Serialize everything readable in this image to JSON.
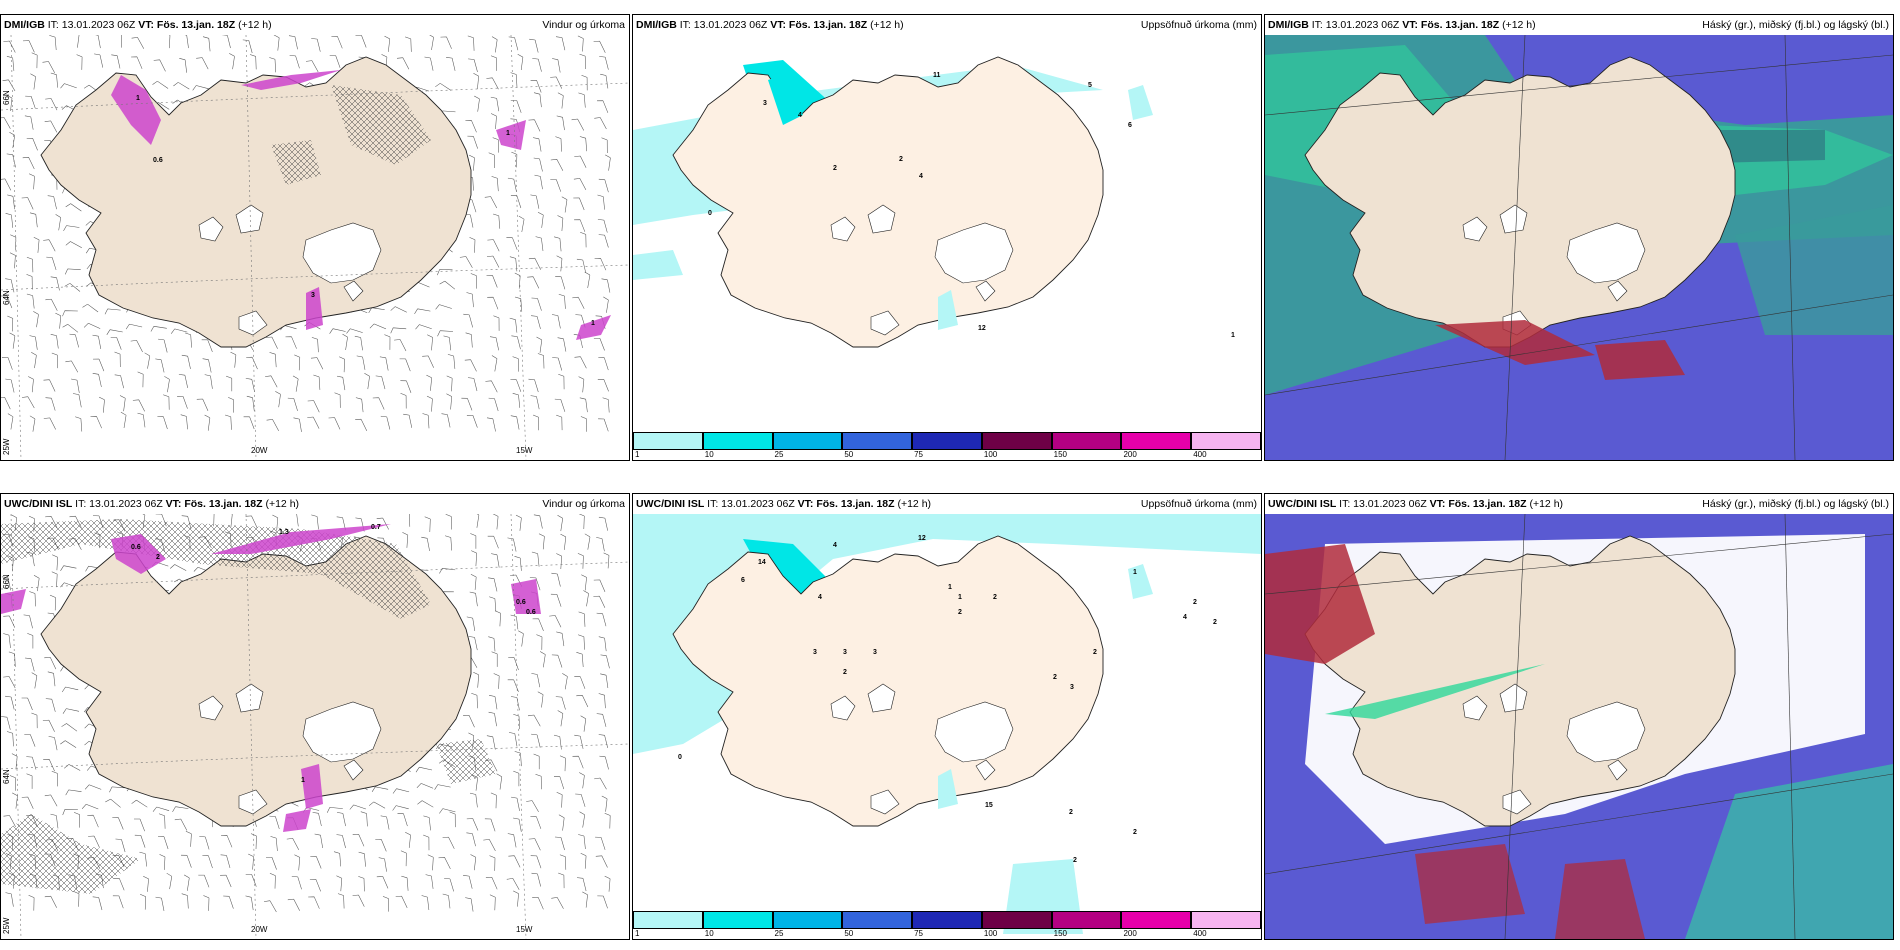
{
  "panels": [
    {
      "source": "DMI/IGB",
      "it": "IT: 13.01.2023 06Z",
      "vt": "VT: Fös. 13.jan. 18Z",
      "lead": "(+12 h)",
      "title": "Vindur og úrkoma",
      "type": "wind"
    },
    {
      "source": "DMI/IGB",
      "it": "IT: 13.01.2023 06Z",
      "vt": "VT: Fös. 13.jan. 18Z",
      "lead": "(+12 h)",
      "title": "Uppsöfnuð úrkoma (mm)",
      "type": "precip"
    },
    {
      "source": "DMI/IGB",
      "it": "IT: 13.01.2023 06Z",
      "vt": "VT: Fös. 13.jan. 18Z",
      "lead": "(+12 h)",
      "title": "Háský (gr.), miðský (fj.bl.) og lágský (bl.)",
      "type": "cloud1"
    },
    {
      "source": "UWC/DINI ISL",
      "it": "IT: 13.01.2023 06Z",
      "vt": "VT: Fös. 13.jan. 18Z",
      "lead": "(+12 h)",
      "title": "Vindur og úrkoma",
      "type": "wind"
    },
    {
      "source": "UWC/DINI ISL",
      "it": "IT: 13.01.2023 06Z",
      "vt": "VT: Fös. 13.jan. 18Z",
      "lead": "(+12 h)",
      "title": "Uppsöfnuð úrkoma (mm)",
      "type": "precip"
    },
    {
      "source": "UWC/DINI ISL",
      "it": "IT: 13.01.2023 06Z",
      "vt": "VT: Fös. 13.jan. 18Z",
      "lead": "(+12 h)",
      "title": "Háský (gr.), miðský (fj.bl.) og lágský (bl.)",
      "type": "cloud2"
    }
  ],
  "axis_labels": {
    "lat66": "66N",
    "lat64": "64N",
    "lon25": "25W",
    "lon20": "20W",
    "lon15": "15W"
  },
  "legend": {
    "labels": [
      "1",
      "10",
      "25",
      "50",
      "75",
      "100",
      "150",
      "200",
      "400"
    ],
    "colors": [
      "#b4f6f6",
      "#00e6e6",
      "#00b4e6",
      "#3264dc",
      "#1e28b4",
      "#6e0046",
      "#b40082",
      "#e600aa",
      "#f6b4f0"
    ]
  },
  "precip_values_top": [
    "11",
    "5",
    "4",
    "4",
    "2",
    "2",
    "6",
    "3",
    "1",
    "12",
    "0"
  ],
  "precip_values_bottom": [
    "12",
    "4",
    "1",
    "14",
    "6",
    "4",
    "2",
    "2",
    "3",
    "3",
    "3",
    "2",
    "2",
    "1",
    "2",
    "2",
    "4",
    "2",
    "3",
    "2",
    "1",
    "15",
    "2",
    "2",
    "0"
  ],
  "wind_values_top": [
    "0.6",
    "1",
    "3",
    "1",
    "1"
  ],
  "wind_values_bottom": [
    "1.3",
    "0.7",
    "2",
    "0.6",
    "0.6",
    "0.6",
    "1"
  ],
  "colors": {
    "land": "#efe2d2",
    "land_precip": "#fdf0e3",
    "glacier": "#ffffff",
    "ocean": "#ffffff",
    "precip_light": "#b4f6f6",
    "precip_mid": "#00e6e6",
    "magenta": "#cc44cc",
    "cloud_high": "#2ed89a",
    "cloud_mid": "#3a9b9b",
    "cloud_low": "#5a5ad2",
    "cloud_red": "#b02c3c"
  }
}
